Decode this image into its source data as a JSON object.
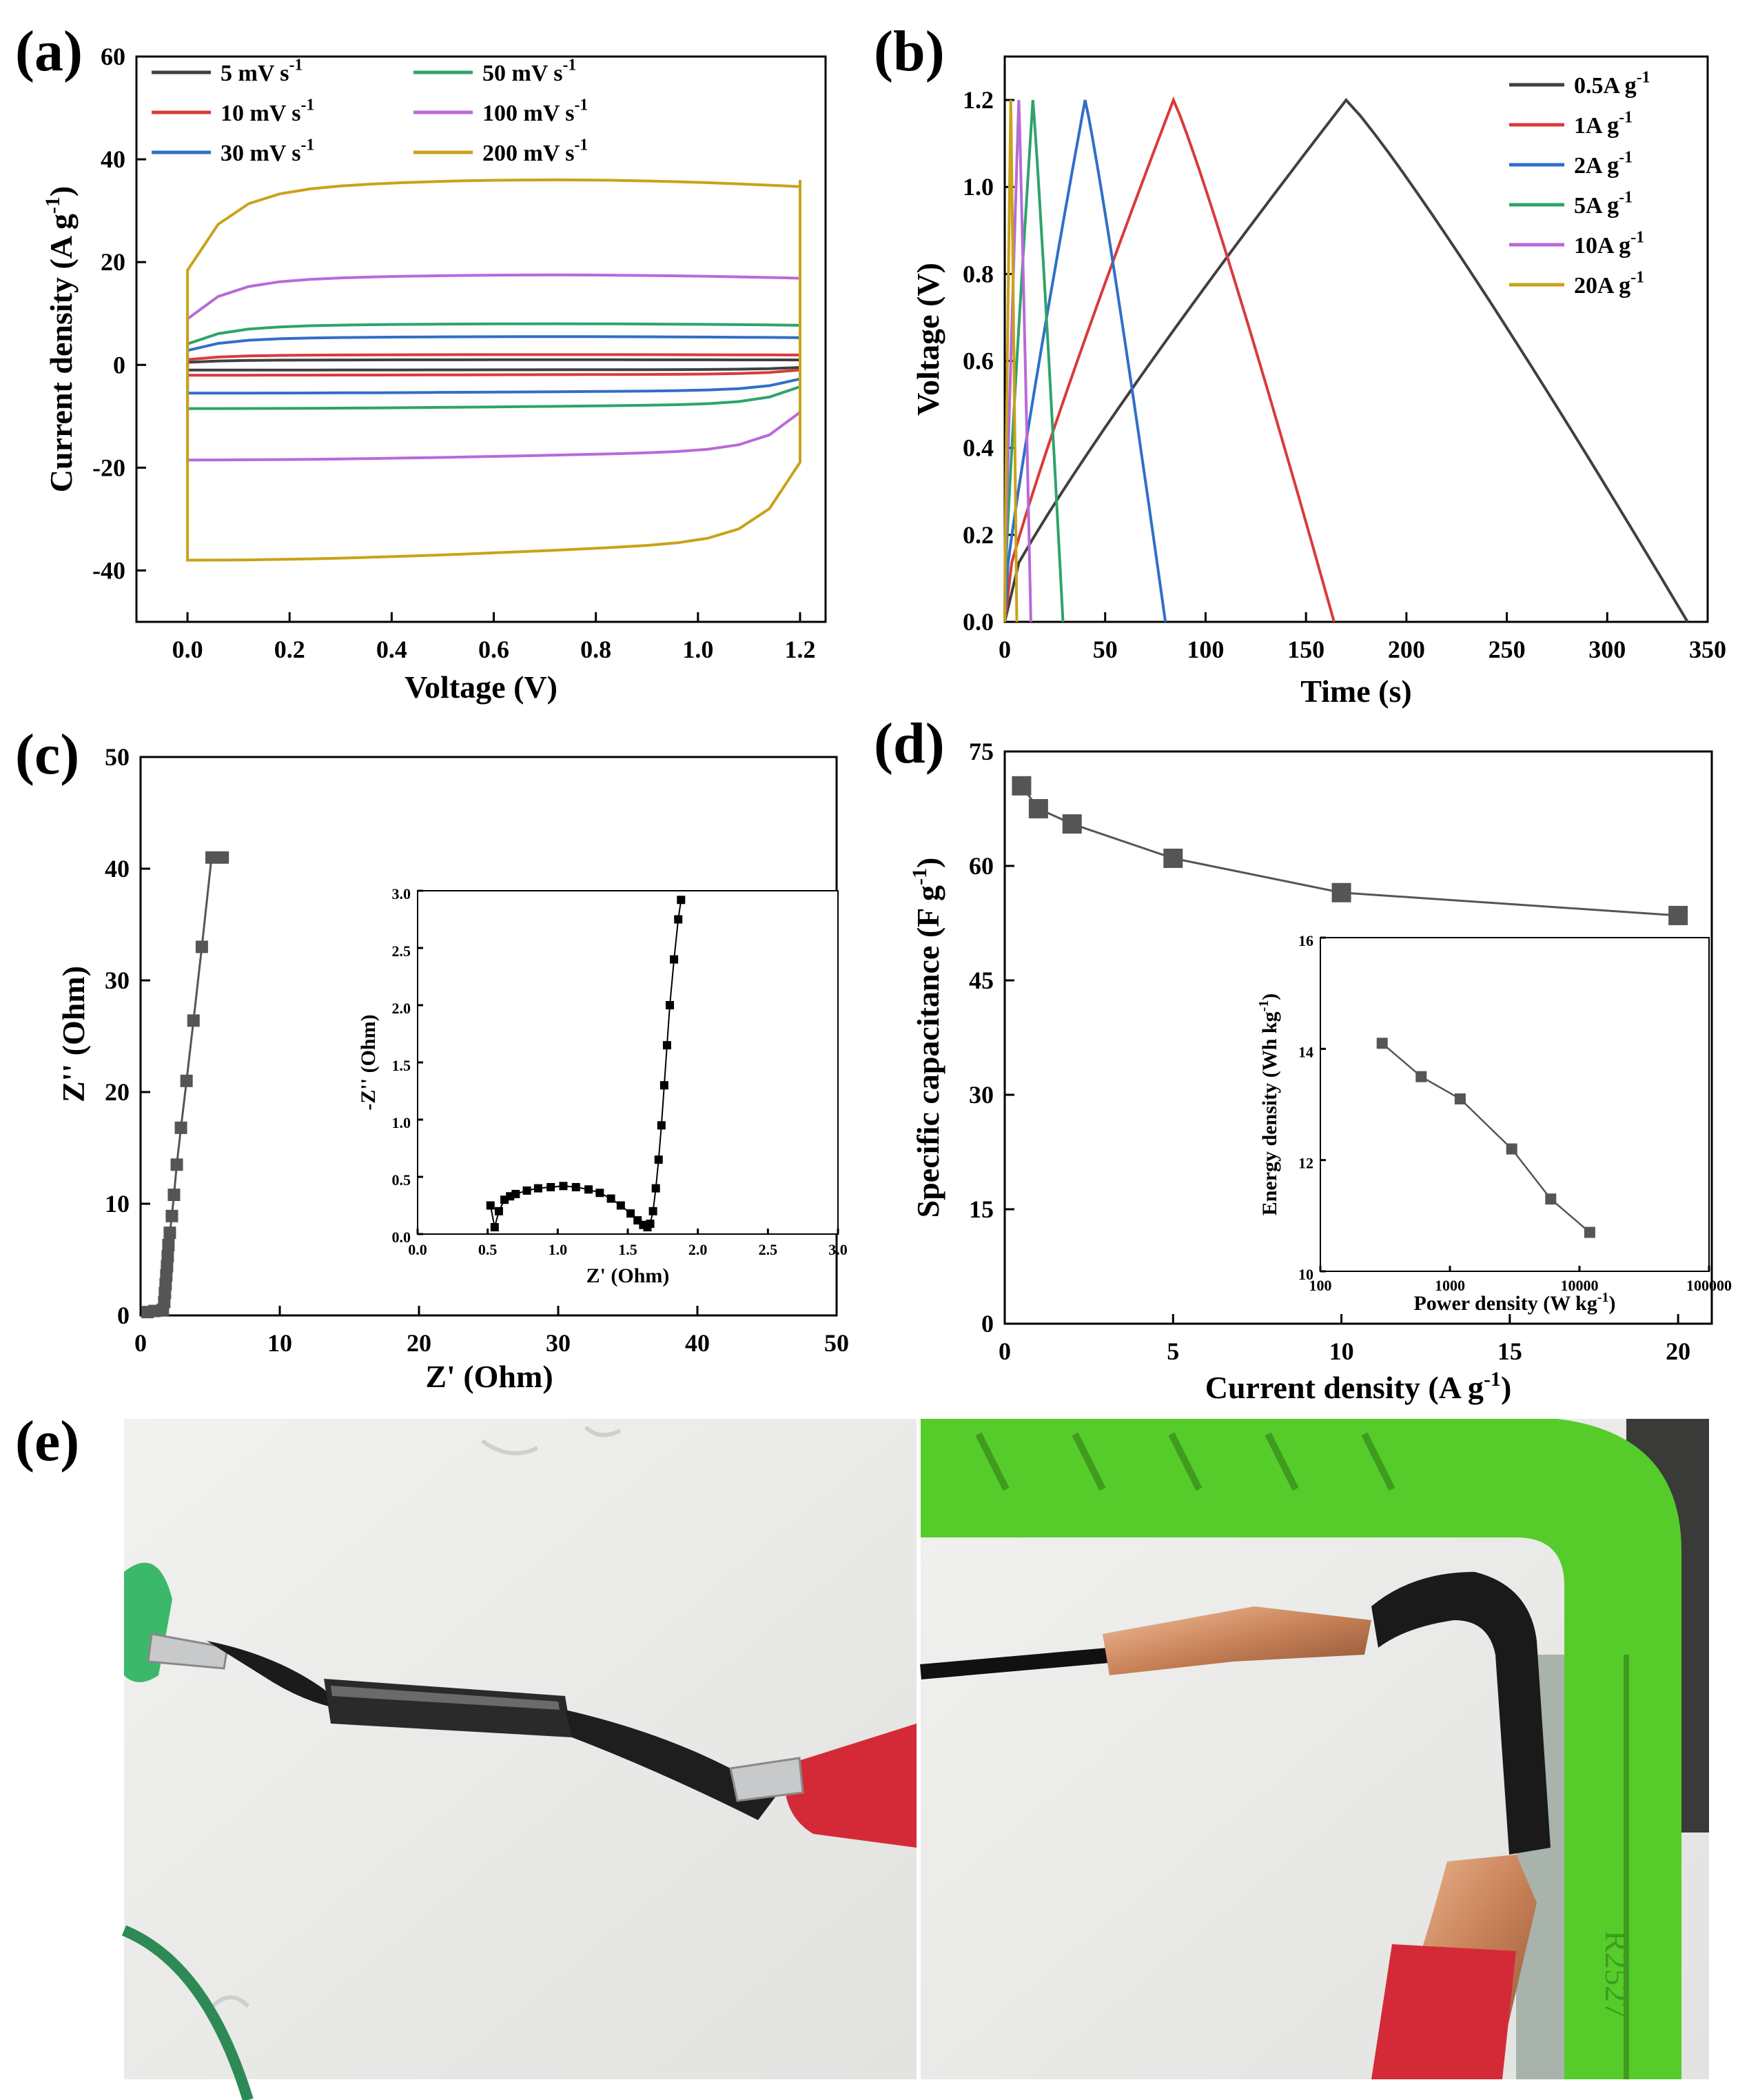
{
  "figure_labels": {
    "a": "(a)",
    "b": "(b)",
    "c": "(c)",
    "d": "(d)",
    "e": "(e)"
  },
  "colors": {
    "black": "#404040",
    "red": "#d93b3b",
    "blue": "#2f6fc8",
    "green": "#2fa36b",
    "purple": "#b86ad8",
    "gold": "#c9a21a",
    "clip_green": "#3cb86a",
    "clip_red": "#d42a38",
    "tray_green": "#55cc2a"
  },
  "chart_data": [
    {
      "id": "a",
      "type": "line",
      "title": "",
      "xlabel": "Voltage (V)",
      "ylabel": "Current density (A g-1)",
      "xlim": [
        -0.1,
        1.25
      ],
      "ylim": [
        -50,
        60
      ],
      "xticks": [
        "0.0",
        "0.2",
        "0.4",
        "0.6",
        "0.8",
        "1.0",
        "1.2"
      ],
      "yticks": [
        "-40",
        "-20",
        "0",
        "20",
        "40",
        "60"
      ],
      "legend": [
        "5 mV s-1",
        "10 mV s-1",
        "30 mV s-1",
        "50 mV s-1",
        "100 mV s-1",
        "200 mV s-1"
      ],
      "series": [
        {
          "name": "5 mV s-1",
          "color": "black",
          "upper": 1.0,
          "lower": -1.0
        },
        {
          "name": "10 mV s-1",
          "color": "red",
          "upper": 2.0,
          "lower": -2.0
        },
        {
          "name": "30 mV s-1",
          "color": "blue",
          "upper": 5.5,
          "lower": -5.5
        },
        {
          "name": "50 mV s-1",
          "color": "green",
          "upper": 8.0,
          "lower": -8.5
        },
        {
          "name": "100 mV s-1",
          "color": "purple",
          "upper": 17.5,
          "lower": -18.5
        },
        {
          "name": "200 mV s-1",
          "color": "gold",
          "upper": 36.0,
          "lower": -38.0
        }
      ]
    },
    {
      "id": "b",
      "type": "line",
      "xlabel": "Time (s)",
      "ylabel": "Voltage (V)",
      "xlim": [
        0,
        350
      ],
      "ylim": [
        0,
        1.3
      ],
      "xticks": [
        "0",
        "50",
        "100",
        "150",
        "200",
        "250",
        "300",
        "350"
      ],
      "yticks": [
        "0.0",
        "0.2",
        "0.4",
        "0.6",
        "0.8",
        "1.0",
        "1.2"
      ],
      "legend": [
        "0.5A g-1",
        "1A g-1",
        "2A g-1",
        "5A g-1",
        "10A g-1",
        "20A g-1"
      ],
      "series": [
        {
          "name": "0.5A g-1",
          "color": "black",
          "peak_time": 170,
          "end_time": 340
        },
        {
          "name": "1A g-1",
          "color": "red",
          "peak_time": 84,
          "end_time": 164
        },
        {
          "name": "2A g-1",
          "color": "blue",
          "peak_time": 40,
          "end_time": 80
        },
        {
          "name": "5A g-1",
          "color": "green",
          "peak_time": 14,
          "end_time": 29
        },
        {
          "name": "10A g-1",
          "color": "purple",
          "peak_time": 7,
          "end_time": 13
        },
        {
          "name": "20A g-1",
          "color": "gold",
          "peak_time": 3,
          "end_time": 6
        }
      ],
      "vmax": 1.2
    },
    {
      "id": "c",
      "type": "scatter",
      "xlabel": "Z' (Ohm)",
      "ylabel": "Z'' (Ohm)",
      "xlim": [
        0,
        50
      ],
      "ylim": [
        0,
        50
      ],
      "xticks": [
        "0",
        "10",
        "20",
        "30",
        "40",
        "50"
      ],
      "yticks": [
        "0",
        "10",
        "20",
        "30",
        "40",
        "50"
      ],
      "x": [
        0.5,
        1.0,
        1.6,
        1.7,
        1.75,
        1.8,
        1.85,
        1.9,
        1.95,
        2.0,
        2.1,
        2.25,
        2.4,
        2.6,
        2.9,
        3.3,
        3.8,
        4.4,
        5.1,
        5.9
      ],
      "y": [
        0.3,
        0.4,
        0.5,
        1.2,
        2.0,
        2.8,
        3.6,
        4.4,
        5.3,
        6.3,
        7.4,
        8.9,
        10.8,
        13.5,
        16.8,
        21.0,
        26.4,
        33.0,
        41.0,
        41.0
      ],
      "inset": {
        "xlabel": "Z' (Ohm)",
        "ylabel": "-Z'' (Ohm)",
        "xlim": [
          0,
          3.0
        ],
        "ylim": [
          0,
          3.0
        ],
        "xticks": [
          "0.0",
          "0.5",
          "1.0",
          "1.5",
          "2.0",
          "2.5",
          "3.0"
        ],
        "yticks": [
          "0.0",
          "0.5",
          "1.0",
          "1.5",
          "2.0",
          "2.5",
          "3.0"
        ],
        "x": [
          0.52,
          0.55,
          0.58,
          0.62,
          0.66,
          0.7,
          0.78,
          0.86,
          0.95,
          1.04,
          1.13,
          1.22,
          1.3,
          1.38,
          1.45,
          1.52,
          1.57,
          1.61,
          1.64,
          1.66,
          1.68,
          1.7,
          1.72,
          1.74,
          1.76,
          1.78,
          1.8,
          1.83,
          1.86,
          1.88
        ],
        "y": [
          0.25,
          0.06,
          0.2,
          0.3,
          0.33,
          0.35,
          0.38,
          0.4,
          0.41,
          0.42,
          0.41,
          0.39,
          0.36,
          0.31,
          0.25,
          0.18,
          0.12,
          0.08,
          0.06,
          0.09,
          0.2,
          0.4,
          0.65,
          0.95,
          1.3,
          1.65,
          2.0,
          2.4,
          2.75,
          2.92
        ]
      }
    },
    {
      "id": "d",
      "type": "line",
      "xlabel": "Current density (A g-1)",
      "ylabel": "Specific capacitance (F g-1)",
      "xlim": [
        0,
        21
      ],
      "ylim": [
        0,
        75
      ],
      "xticks": [
        "0",
        "5",
        "10",
        "15",
        "20"
      ],
      "yticks": [
        "0",
        "15",
        "30",
        "45",
        "60",
        "75"
      ],
      "x": [
        0.5,
        1,
        2,
        5,
        10,
        20
      ],
      "y": [
        70.5,
        67.5,
        65.5,
        61,
        56.5,
        53.5
      ],
      "inset": {
        "xlabel": "Power density (W kg-1)",
        "ylabel": "Energy density (Wh kg-1)",
        "xscale": "log",
        "xlim": [
          100,
          100000
        ],
        "ylim": [
          10,
          16
        ],
        "xticks": [
          "100",
          "1000",
          "10000",
          "100000"
        ],
        "yticks": [
          "10",
          "12",
          "14",
          "16"
        ],
        "x": [
          300,
          600,
          1200,
          3000,
          6000,
          12000
        ],
        "y": [
          14.1,
          13.5,
          13.1,
          12.2,
          11.3,
          10.7
        ]
      }
    }
  ]
}
